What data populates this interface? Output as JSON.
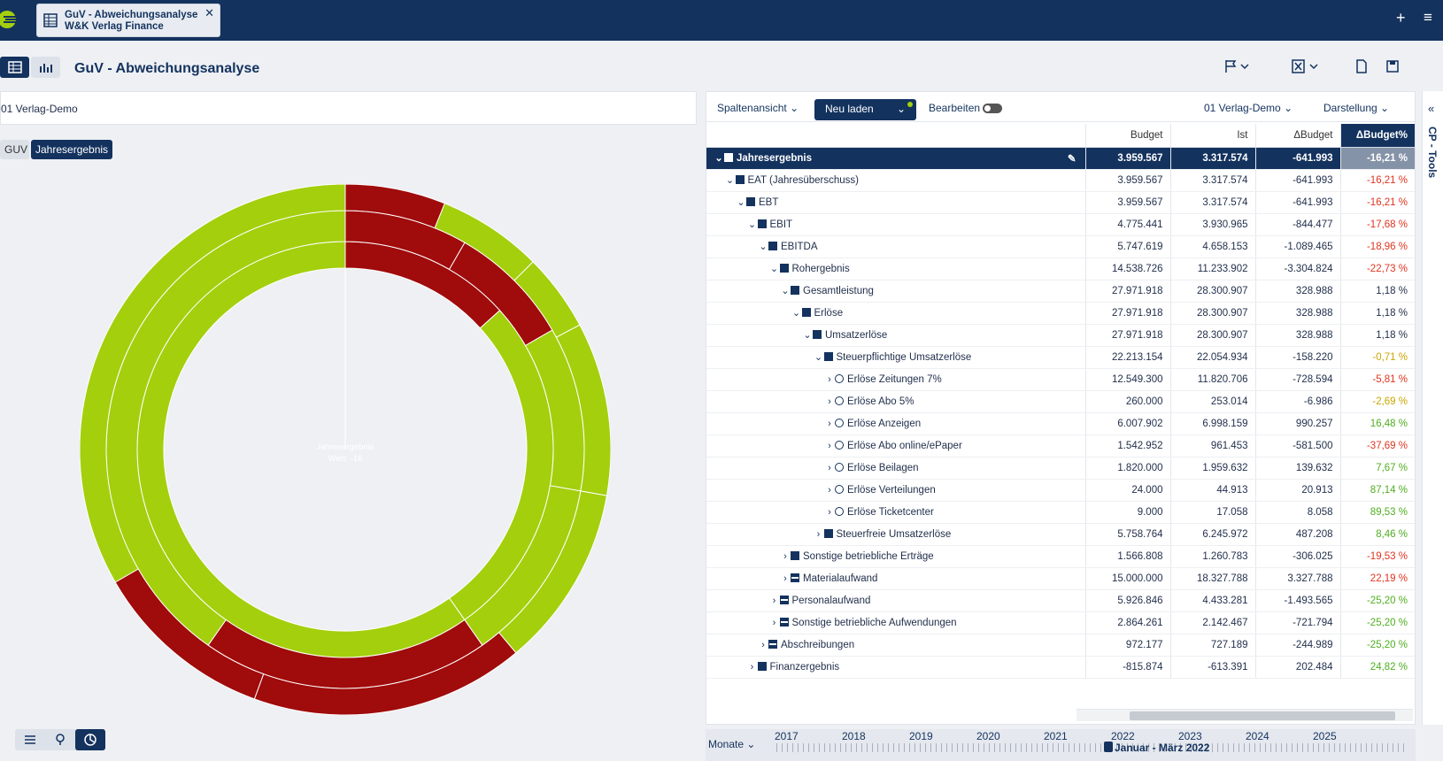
{
  "app": {
    "tab": {
      "line1": "GuV - Abweichungsanalyse",
      "line2": "W&K Verlag Finance",
      "close": "✕"
    },
    "plus": "+",
    "menu": "≡"
  },
  "page": {
    "title": "GuV - Abweichungsanalyse"
  },
  "left": {
    "company": "01 Verlag-Demo",
    "chips": [
      "GUV",
      "Jahresergebnis"
    ],
    "center_label": "Jahresergebnis",
    "center_value": "Wert: -16"
  },
  "toolbar": {
    "column_view": "Spaltenansicht",
    "reload": "Neu laden",
    "edit": "Bearbeiten",
    "company": "01 Verlag-Demo",
    "display": "Darstellung"
  },
  "colors": {
    "navy": "#13325e",
    "red": "#a00b0b",
    "green": "#a4cf0d"
  },
  "table": {
    "headers": [
      "",
      "Budget",
      "Ist",
      "ΔBudget",
      "ΔBudget%"
    ],
    "rows": [
      {
        "name": "Jahresergebnis",
        "budget": "3.959.567",
        "ist": "3.317.574",
        "delta": "-641.993",
        "pct": "-16,21 %",
        "cls": "",
        "icon": "sq",
        "level": 0,
        "chev": "⌄",
        "root": true
      },
      {
        "name": "EAT (Jahresüberschuss)",
        "budget": "3.959.567",
        "ist": "3.317.574",
        "delta": "-641.993",
        "pct": "-16,21 %",
        "cls": "neg",
        "icon": "sq",
        "level": 1,
        "chev": "⌄"
      },
      {
        "name": "EBT",
        "budget": "3.959.567",
        "ist": "3.317.574",
        "delta": "-641.993",
        "pct": "-16,21 %",
        "cls": "neg",
        "icon": "sq",
        "level": 2,
        "chev": "⌄"
      },
      {
        "name": "EBIT",
        "budget": "4.775.441",
        "ist": "3.930.965",
        "delta": "-844.477",
        "pct": "-17,68 %",
        "cls": "neg",
        "icon": "sq",
        "level": 3,
        "chev": "⌄"
      },
      {
        "name": "EBITDA",
        "budget": "5.747.619",
        "ist": "4.658.153",
        "delta": "-1.089.465",
        "pct": "-18,96 %",
        "cls": "neg",
        "icon": "sq",
        "level": 4,
        "chev": "⌄"
      },
      {
        "name": "Rohergebnis",
        "budget": "14.538.726",
        "ist": "11.233.902",
        "delta": "-3.304.824",
        "pct": "-22,73 %",
        "cls": "neg",
        "icon": "sq",
        "level": 5,
        "chev": "⌄"
      },
      {
        "name": "Gesamtleistung",
        "budget": "27.971.918",
        "ist": "28.300.907",
        "delta": "328.988",
        "pct": "1,18 %",
        "cls": "",
        "icon": "sq",
        "level": 6,
        "chev": "⌄"
      },
      {
        "name": "Erlöse",
        "budget": "27.971.918",
        "ist": "28.300.907",
        "delta": "328.988",
        "pct": "1,18 %",
        "cls": "",
        "icon": "sq",
        "level": 7,
        "chev": "⌄"
      },
      {
        "name": "Umsatzerlöse",
        "budget": "27.971.918",
        "ist": "28.300.907",
        "delta": "328.988",
        "pct": "1,18 %",
        "cls": "",
        "icon": "sq",
        "level": 8,
        "chev": "⌄"
      },
      {
        "name": "Steuerpflichtige Umsatzerlöse",
        "budget": "22.213.154",
        "ist": "22.054.934",
        "delta": "-158.220",
        "pct": "-0,71 %",
        "cls": "warn",
        "icon": "sq",
        "level": 9,
        "chev": "⌄"
      },
      {
        "name": "Erlöse Zeitungen 7%",
        "budget": "12.549.300",
        "ist": "11.820.706",
        "delta": "-728.594",
        "pct": "-5,81 %",
        "cls": "neg",
        "icon": "circ",
        "level": 10,
        "chev": "›"
      },
      {
        "name": "Erlöse Abo 5%",
        "budget": "260.000",
        "ist": "253.014",
        "delta": "-6.986",
        "pct": "-2,69 %",
        "cls": "warn",
        "icon": "circ",
        "level": 10,
        "chev": "›"
      },
      {
        "name": "Erlöse Anzeigen",
        "budget": "6.007.902",
        "ist": "6.998.159",
        "delta": "990.257",
        "pct": "16,48 %",
        "cls": "pos",
        "icon": "circ",
        "level": 10,
        "chev": "›"
      },
      {
        "name": "Erlöse Abo online/ePaper",
        "budget": "1.542.952",
        "ist": "961.453",
        "delta": "-581.500",
        "pct": "-37,69 %",
        "cls": "neg",
        "icon": "circ",
        "level": 10,
        "chev": "›"
      },
      {
        "name": "Erlöse Beilagen",
        "budget": "1.820.000",
        "ist": "1.959.632",
        "delta": "139.632",
        "pct": "7,67 %",
        "cls": "pos",
        "icon": "circ",
        "level": 10,
        "chev": "›"
      },
      {
        "name": "Erlöse Verteilungen",
        "budget": "24.000",
        "ist": "44.913",
        "delta": "20.913",
        "pct": "87,14 %",
        "cls": "pos",
        "icon": "circ",
        "level": 10,
        "chev": "›"
      },
      {
        "name": "Erlöse Ticketcenter",
        "budget": "9.000",
        "ist": "17.058",
        "delta": "8.058",
        "pct": "89,53 %",
        "cls": "pos",
        "icon": "circ",
        "level": 10,
        "chev": "›"
      },
      {
        "name": "Steuerfreie Umsatzerlöse",
        "budget": "5.758.764",
        "ist": "6.245.972",
        "delta": "487.208",
        "pct": "8,46 %",
        "cls": "pos",
        "icon": "sq",
        "level": 9,
        "chev": "›"
      },
      {
        "name": "Sonstige betriebliche Erträge",
        "budget": "1.566.808",
        "ist": "1.260.783",
        "delta": "-306.025",
        "pct": "-19,53 %",
        "cls": "neg",
        "icon": "sq",
        "level": 6,
        "chev": "›"
      },
      {
        "name": "Materialaufwand",
        "budget": "15.000.000",
        "ist": "18.327.788",
        "delta": "3.327.788",
        "pct": "22,19 %",
        "cls": "neg",
        "icon": "minus",
        "level": 6,
        "chev": "›"
      },
      {
        "name": "Personalaufwand",
        "budget": "5.926.846",
        "ist": "4.433.281",
        "delta": "-1.493.565",
        "pct": "-25,20 %",
        "cls": "pos",
        "icon": "minus",
        "level": 5,
        "chev": "›"
      },
      {
        "name": "Sonstige betriebliche Aufwendungen",
        "budget": "2.864.261",
        "ist": "2.142.467",
        "delta": "-721.794",
        "pct": "-25,20 %",
        "cls": "pos",
        "icon": "minus",
        "level": 5,
        "chev": "›"
      },
      {
        "name": "Abschreibungen",
        "budget": "972.177",
        "ist": "727.189",
        "delta": "-244.989",
        "pct": "-25,20 %",
        "cls": "pos",
        "icon": "minus",
        "level": 4,
        "chev": "›"
      },
      {
        "name": "Finanzergebnis",
        "budget": "-815.874",
        "ist": "-613.391",
        "delta": "202.484",
        "pct": "24,82 %",
        "cls": "pos",
        "icon": "sq",
        "level": 3,
        "chev": "›"
      }
    ]
  },
  "timeline": {
    "label": "Monate",
    "years": [
      "2017",
      "2018",
      "2019",
      "2020",
      "2021",
      "2022",
      "2023",
      "2024",
      "2025"
    ],
    "range": "Januar - März 2022"
  },
  "side": {
    "label": "CP - Tools",
    "arrows": "«"
  }
}
